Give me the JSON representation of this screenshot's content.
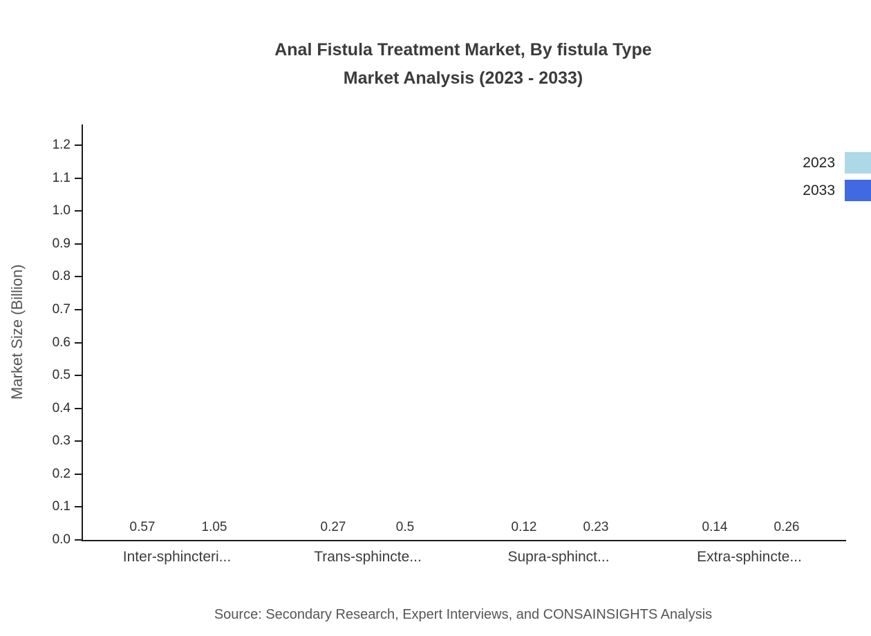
{
  "title": {
    "line1": "Anal Fistula Treatment Market, By fistula Type",
    "line2": "Market Analysis (2023 - 2033)"
  },
  "source": "Source: Secondary Research, Expert Interviews, and CONSAINSIGHTS Analysis",
  "chart_data": {
    "type": "bar",
    "title": "Anal Fistula Treatment Market, By fistula Type Market Analysis (2023 - 2033)",
    "categories": [
      "Inter-sphincteri...",
      "Trans-sphincte...",
      "Supra-sphinct...",
      "Extra-sphincte..."
    ],
    "series": [
      {
        "name": "2023",
        "color": "#add8e6",
        "values": [
          0.57,
          0.27,
          0.12,
          0.14
        ]
      },
      {
        "name": "2033",
        "color": "#4169e1",
        "values": [
          1.05,
          0.5,
          0.23,
          0.26
        ]
      }
    ],
    "value_labels": [
      [
        "0.57",
        "0.27",
        "0.12",
        "0.14"
      ],
      [
        "1.05",
        "0.5",
        "0.23",
        "0.26"
      ]
    ],
    "ylabel": "Market Size (Billion)",
    "xlabel": "",
    "ylim": [
      0,
      1.263
    ],
    "yticks": [
      0.0,
      0.1,
      0.2,
      0.3,
      0.4,
      0.5,
      0.6,
      0.7,
      0.8,
      0.9,
      1.0,
      1.1,
      1.2
    ],
    "grid": false,
    "legend_position": "top-right"
  },
  "legend": {
    "items": [
      {
        "label": "2023",
        "color": "#add8e6"
      },
      {
        "label": "2033",
        "color": "#4169e1"
      }
    ]
  }
}
